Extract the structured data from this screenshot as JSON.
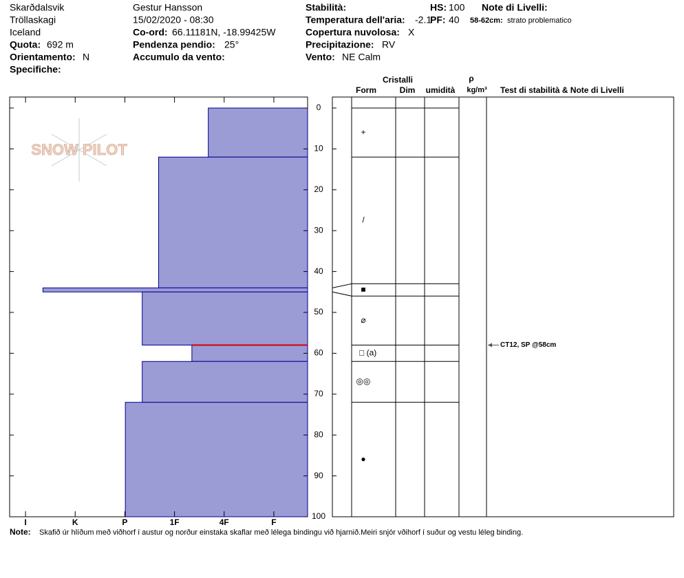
{
  "header": {
    "location": [
      "Skarðdalsvik",
      "Tröllaskagi",
      "Iceland"
    ],
    "elevation_label": "Quota:",
    "elevation": "692 m",
    "aspect_label": "Orientamento:",
    "aspect": "N",
    "specifics_label": "Specifiche:",
    "observer": "Gestur Hansson",
    "datetime": "15/02/2020 - 08:30",
    "coord_label": "Co-ord:",
    "coord": "66.11181N, -18.99425W",
    "slope_label": "Pendenza pendio:",
    "slope": "25°",
    "wind_loading_label": "Accumulo da vento:",
    "stability_label": "Stabilità:",
    "air_temp_label": "Temperatura dell'aria:",
    "air_temp": "-2.1",
    "cloud_label": "Copertura nuvolosa:",
    "cloud": "X",
    "precip_label": "Precipitazione:",
    "precip": "RV",
    "wind_label": "Vento:",
    "wind": "NE Calm",
    "hs_label": "HS:",
    "hs": "100",
    "pf_label": "PF:",
    "pf": "40",
    "layer_notes_label": "Note di Livelli:",
    "layer_note_depth": "58-62cm:",
    "layer_note": "strato problematico"
  },
  "logo": "SNOW PILOT",
  "chart_data": {
    "type": "bar",
    "depth_top": [
      0,
      12,
      44,
      45,
      58,
      62,
      72
    ],
    "depth_bottom": [
      12,
      44,
      45,
      58,
      62,
      72,
      100
    ],
    "values": [
      2.32,
      3.32,
      5.65,
      3.65,
      2.65,
      3.65,
      3.99
    ],
    "color": "#9b9bd6",
    "edge_color": "#00008b",
    "xlim": [
      0.32,
      6.32
    ],
    "x_reversed": true,
    "xticks": [
      {
        "value": 6,
        "label": "I"
      },
      {
        "value": 5,
        "label": "K"
      },
      {
        "value": 4,
        "label": "P"
      },
      {
        "value": 3,
        "label": "1F"
      },
      {
        "value": 2,
        "label": "4F"
      },
      {
        "value": 1,
        "label": "F"
      }
    ],
    "ylim": [
      0,
      100
    ],
    "y_reversed": true,
    "yticks": [
      0,
      10,
      20,
      30,
      40,
      50,
      60,
      70,
      80,
      90,
      100
    ]
  },
  "crystals": {
    "title": "Cristalli",
    "form": "Form",
    "size": "Dim",
    "moisture": "umidità",
    "density": "ρ",
    "density_unit": "kg/m³",
    "tests_title": "Test di stabilità & Note di Livelli",
    "tops": [
      0,
      12,
      43,
      46,
      58,
      62,
      72
    ],
    "bottoms": [
      12,
      43,
      46,
      58,
      62,
      72,
      100
    ],
    "forms": [
      "+",
      "/",
      "■",
      "⌀",
      "□ (a)",
      "◎◎",
      "●"
    ]
  },
  "tests": [
    {
      "depth": 58,
      "label": "CT12, SP @58cm",
      "color": "#d00000"
    }
  ],
  "note_label": "Note:",
  "note": "Skafið úr hlíðum með viðhorf í austur og norður einstaka skaflar með lélega bindingu við hjarnið.Meiri snjór vðihorf í suður og vestu léleg binding."
}
